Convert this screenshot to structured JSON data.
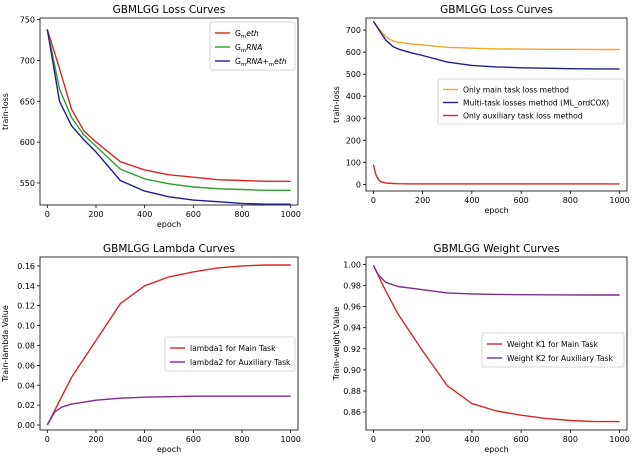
{
  "chart_data": [
    {
      "type": "line",
      "title": "GBMLGG Loss Curves",
      "xlabel": "epoch",
      "ylabel": "train-loss",
      "xlim": [
        -30,
        1030
      ],
      "ylim": [
        523,
        752
      ],
      "xticks": [
        0,
        200,
        400,
        600,
        800,
        1000
      ],
      "yticks": [
        550,
        600,
        650,
        700,
        750
      ],
      "legend_position": "top-right",
      "series": [
        {
          "name": "G<sub>m</sub>eth",
          "name_html": "G<tspan font-size=\"5.5\" dy=\"2\">m</tspan><tspan dy=\"-2\" font-style=\"italic\">eth</tspan>",
          "color": "#d62728",
          "x": [
            0,
            50,
            100,
            150,
            200,
            300,
            400,
            500,
            600,
            700,
            800,
            900,
            1000
          ],
          "y": [
            738,
            690,
            640,
            614,
            600,
            576,
            566,
            560,
            557,
            554,
            553,
            552,
            552
          ]
        },
        {
          "name": "G<sub>m</sub>RNA",
          "name_html": "G<tspan font-size=\"5.5\" dy=\"2\">m</tspan><tspan dy=\"-2\" font-style=\"italic\">RNA</tspan>",
          "color": "#2ca02c",
          "x": [
            0,
            50,
            100,
            150,
            200,
            300,
            400,
            500,
            600,
            700,
            800,
            900,
            1000
          ],
          "y": [
            738,
            665,
            630,
            609,
            595,
            567,
            555,
            549,
            545,
            543,
            542,
            541,
            541
          ]
        },
        {
          "name": "G<sub>m</sub>RNA+<sub>m</sub>eth",
          "name_html": "G<tspan font-size=\"5.5\" dy=\"2\">m</tspan><tspan dy=\"-2\" font-style=\"italic\">RNA</tspan>+<tspan font-size=\"5.5\" dy=\"2\">m</tspan><tspan dy=\"-2\" font-style=\"italic\">eth</tspan>",
          "color": "#1f1f8f",
          "x": [
            0,
            50,
            100,
            150,
            200,
            300,
            400,
            500,
            600,
            700,
            800,
            900,
            1000
          ],
          "y": [
            738,
            650,
            620,
            603,
            588,
            553,
            540,
            533,
            529,
            527,
            525,
            524,
            524
          ]
        }
      ]
    },
    {
      "type": "line",
      "title": "GBMLGG Loss Curves",
      "xlabel": "epoch",
      "ylabel": "train-loss",
      "xlim": [
        -30,
        1030
      ],
      "ylim": [
        -30,
        755
      ],
      "xticks": [
        0,
        200,
        400,
        600,
        800,
        1000
      ],
      "yticks": [
        0,
        100,
        200,
        300,
        400,
        500,
        600,
        700
      ],
      "legend_position": "center-right",
      "series": [
        {
          "name": "Only main task loss method",
          "color": "#f5a623",
          "x": [
            0,
            20,
            50,
            80,
            100,
            150,
            200,
            300,
            400,
            500,
            600,
            700,
            800,
            900,
            1000
          ],
          "y": [
            740,
            710,
            670,
            650,
            645,
            638,
            633,
            622,
            618,
            615,
            614,
            613,
            613,
            612,
            612
          ]
        },
        {
          "name": "Multi-task losses method (ML_ordCOX)",
          "color": "#1f1f8f",
          "x": [
            0,
            20,
            50,
            80,
            100,
            150,
            200,
            300,
            400,
            500,
            600,
            700,
            800,
            900,
            1000
          ],
          "y": [
            740,
            705,
            655,
            625,
            615,
            598,
            585,
            555,
            540,
            533,
            529,
            527,
            525,
            524,
            524
          ]
        },
        {
          "name": "Only auxiliary task loss method",
          "color": "#d62728",
          "x": [
            0,
            10,
            20,
            30,
            50,
            80,
            100,
            150,
            200,
            300,
            400,
            500,
            600,
            700,
            800,
            900,
            1000
          ],
          "y": [
            90,
            45,
            22,
            12,
            6,
            4,
            3,
            2,
            2,
            2,
            2,
            2,
            2,
            2,
            2,
            2,
            2
          ]
        }
      ]
    },
    {
      "type": "line",
      "title": "GBMLGG Lambda Curves",
      "xlabel": "epoch",
      "ylabel": "Train-lambda Value",
      "xlim": [
        -30,
        1030
      ],
      "ylim": [
        -0.005,
        0.169
      ],
      "xticks": [
        0,
        200,
        400,
        600,
        800,
        1000
      ],
      "yticks": [
        0.0,
        0.02,
        0.04,
        0.06,
        0.08,
        0.1,
        0.12,
        0.14,
        0.16
      ],
      "legend_position": "center-right",
      "series": [
        {
          "name": "lambda1 for Main Task",
          "color": "#d62728",
          "x": [
            0,
            100,
            200,
            300,
            400,
            500,
            600,
            700,
            800,
            900,
            1000
          ],
          "y": [
            0.0,
            0.048,
            0.085,
            0.122,
            0.14,
            0.149,
            0.154,
            0.158,
            0.16,
            0.161,
            0.161
          ]
        },
        {
          "name": "lambda2 for Auxiliary Task",
          "color": "#7b2d8e",
          "x": [
            0,
            30,
            60,
            100,
            150,
            200,
            300,
            400,
            500,
            600,
            700,
            800,
            900,
            1000
          ],
          "y": [
            0.0,
            0.013,
            0.018,
            0.021,
            0.023,
            0.025,
            0.027,
            0.028,
            0.0285,
            0.029,
            0.029,
            0.029,
            0.029,
            0.029
          ]
        }
      ]
    },
    {
      "type": "line",
      "title": "GBMLGG Weight Curves",
      "xlabel": "epoch",
      "ylabel": "Train-weight Value",
      "xlim": [
        -30,
        1030
      ],
      "ylim": [
        0.843,
        1.007
      ],
      "xticks": [
        0,
        200,
        400,
        600,
        800,
        1000
      ],
      "yticks": [
        0.86,
        0.88,
        0.9,
        0.92,
        0.94,
        0.96,
        0.98,
        1.0
      ],
      "legend_position": "center-right",
      "series": [
        {
          "name": "Weight K1 for Main Task",
          "color": "#d62728",
          "x": [
            0,
            50,
            100,
            200,
            300,
            400,
            500,
            600,
            700,
            800,
            900,
            1000
          ],
          "y": [
            0.999,
            0.975,
            0.953,
            0.918,
            0.885,
            0.868,
            0.861,
            0.857,
            0.854,
            0.852,
            0.851,
            0.851
          ]
        },
        {
          "name": "Weight K2 for Auxiliary Task",
          "color": "#7b2d8e",
          "x": [
            0,
            20,
            50,
            100,
            200,
            300,
            400,
            500,
            600,
            700,
            800,
            900,
            1000
          ],
          "y": [
            0.999,
            0.99,
            0.983,
            0.979,
            0.976,
            0.973,
            0.972,
            0.9715,
            0.9713,
            0.9712,
            0.9711,
            0.971,
            0.971
          ]
        }
      ]
    }
  ]
}
